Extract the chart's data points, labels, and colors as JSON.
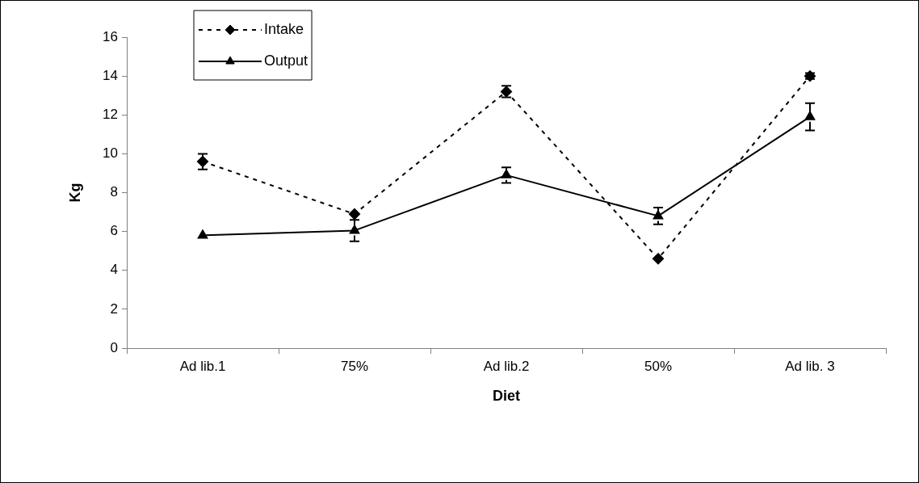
{
  "chart_data": {
    "type": "line",
    "xlabel": "Diet",
    "ylabel": "Kg",
    "categories": [
      "Ad lib.1",
      "75%",
      "Ad lib.2",
      "50%",
      "Ad lib. 3"
    ],
    "series": [
      {
        "name": "Intake",
        "color": "#000000",
        "marker": "diamond",
        "line_style": "dashed",
        "values": [
          9.6,
          6.9,
          13.2,
          4.6,
          14.0
        ],
        "errors": [
          0.4,
          null,
          0.3,
          null,
          0.15
        ]
      },
      {
        "name": "Output",
        "color": "#000000",
        "marker": "triangle",
        "line_style": "solid",
        "values": [
          5.8,
          6.05,
          8.9,
          6.8,
          11.9
        ],
        "errors": [
          null,
          0.55,
          0.4,
          0.43,
          0.7
        ]
      }
    ],
    "ylim": [
      0,
      16
    ],
    "yticks": [
      0,
      2,
      4,
      6,
      8,
      10,
      12,
      14,
      16
    ],
    "grid": false,
    "legend": "top left"
  }
}
